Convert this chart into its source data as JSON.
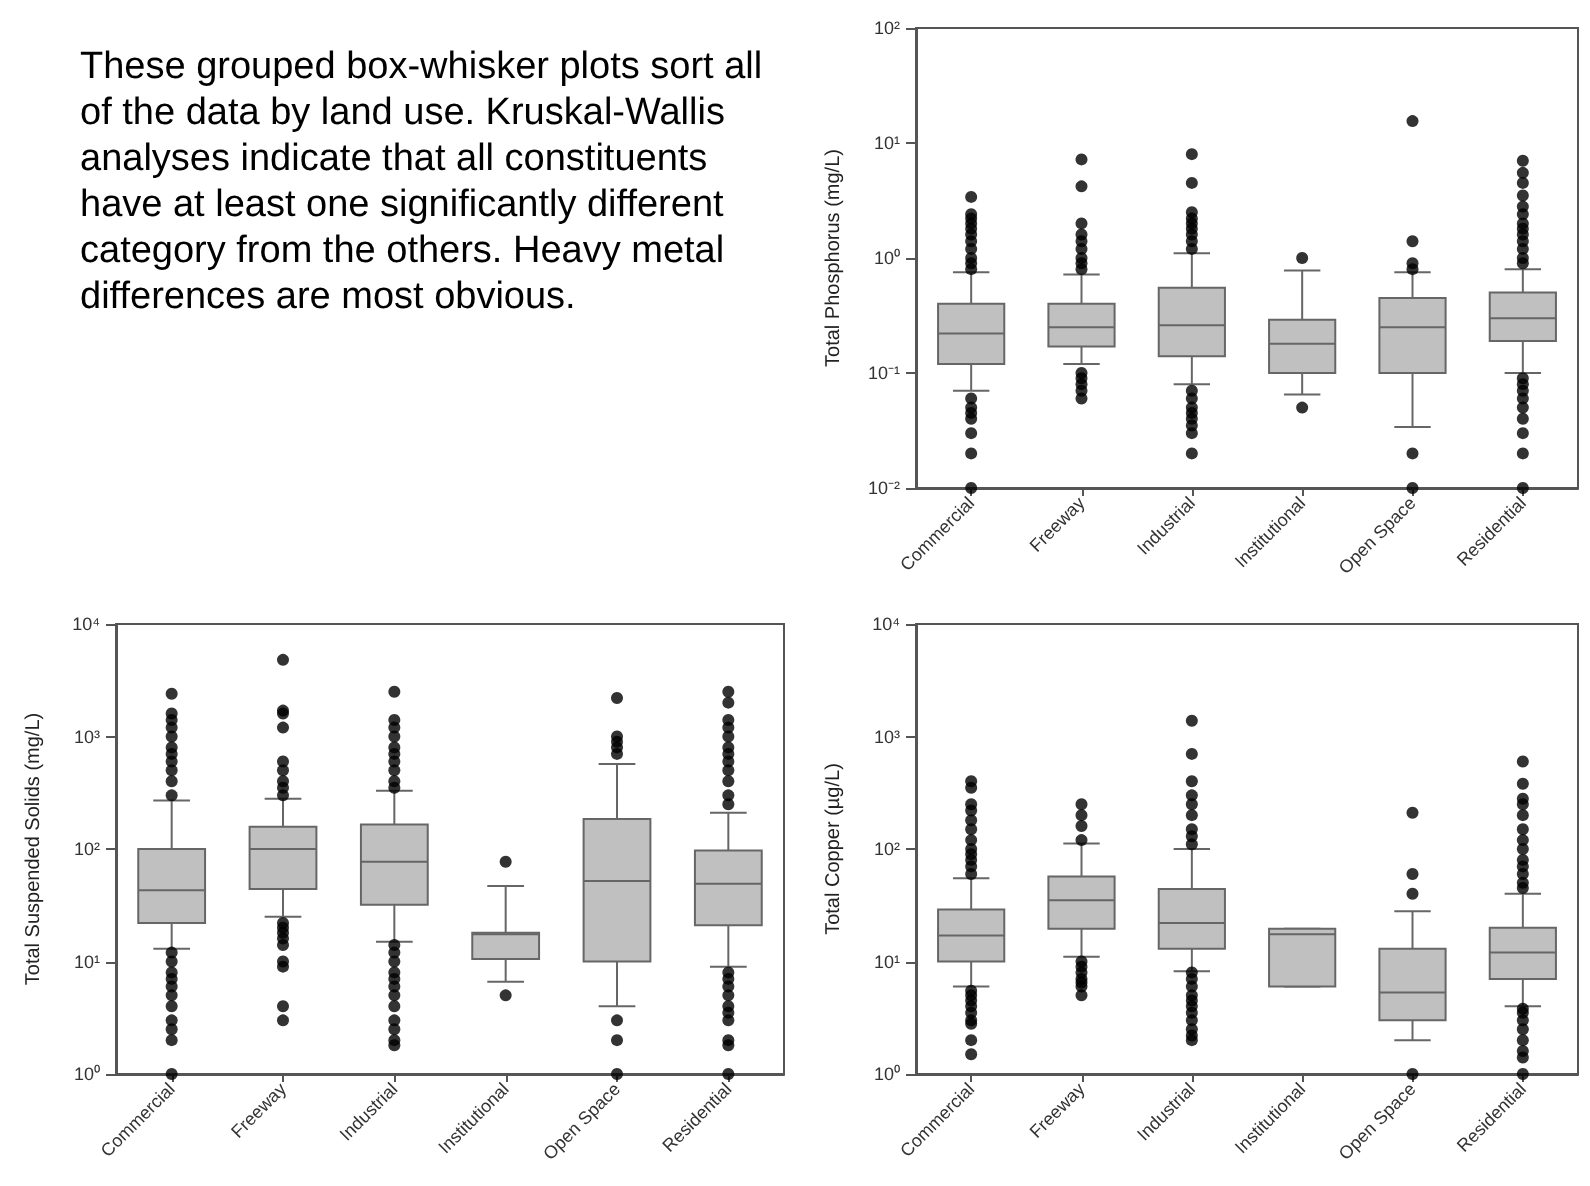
{
  "chart_data": [
    {
      "type": "other",
      "annotations": [
        "These grouped box-whisker plots sort all of the data by land use. Kruskal-Wallis analyses indicate that all constituents have at least one significantly different category from the others. Heavy metal differences are most obvious."
      ]
    },
    {
      "type": "box",
      "ylabel": "Total Phosphorus (mg/L)",
      "log": true,
      "categories": [
        "Commercial",
        "Freeway",
        "Industrial",
        "Institutional",
        "Open Space",
        "Residential"
      ],
      "ylim": [
        0.01,
        100
      ],
      "yticks": [
        {
          "value": 0.01,
          "label": "10⁻²"
        },
        {
          "value": 0.1,
          "label": "10⁻¹"
        },
        {
          "value": 1,
          "label": "10⁰"
        },
        {
          "value": 10,
          "label": "10¹"
        },
        {
          "value": 100,
          "label": "10²"
        }
      ],
      "series": [
        {
          "type": "box",
          "color": "#c0c0c0",
          "boxes": [
            {
              "low": 0.07,
              "q1": 0.12,
              "median": 0.22,
              "q3": 0.4,
              "high": 0.75
            },
            {
              "low": 0.12,
              "q1": 0.17,
              "median": 0.25,
              "q3": 0.4,
              "high": 0.72
            },
            {
              "low": 0.08,
              "q1": 0.14,
              "median": 0.26,
              "q3": 0.55,
              "high": 1.1
            },
            {
              "low": 0.065,
              "q1": 0.1,
              "median": 0.18,
              "q3": 0.29,
              "high": 0.78
            },
            {
              "low": 0.034,
              "q1": 0.1,
              "median": 0.25,
              "q3": 0.45,
              "high": 0.75
            },
            {
              "low": 0.1,
              "q1": 0.19,
              "median": 0.3,
              "q3": 0.5,
              "high": 0.8
            }
          ]
        },
        {
          "type": "scatter",
          "color": "#000000",
          "marker": "circle",
          "x": [
            "Commercial",
            "Commercial",
            "Commercial",
            "Commercial",
            "Commercial",
            "Commercial",
            "Commercial",
            "Commercial",
            "Commercial",
            "Commercial",
            "Commercial",
            "Commercial",
            "Commercial",
            "Commercial",
            "Commercial",
            "Commercial",
            "Commercial",
            "Commercial",
            "Freeway",
            "Freeway",
            "Freeway",
            "Freeway",
            "Freeway",
            "Freeway",
            "Freeway",
            "Freeway",
            "Freeway",
            "Freeway",
            "Freeway",
            "Freeway",
            "Freeway",
            "Freeway",
            "Industrial",
            "Industrial",
            "Industrial",
            "Industrial",
            "Industrial",
            "Industrial",
            "Industrial",
            "Industrial",
            "Industrial",
            "Industrial",
            "Industrial",
            "Industrial",
            "Industrial",
            "Industrial",
            "Industrial",
            "Industrial",
            "Industrial",
            "Institutional",
            "Institutional",
            "Open Space",
            "Open Space",
            "Open Space",
            "Open Space",
            "Open Space",
            "Open Space",
            "Residential",
            "Residential",
            "Residential",
            "Residential",
            "Residential",
            "Residential",
            "Residential",
            "Residential",
            "Residential",
            "Residential",
            "Residential",
            "Residential",
            "Residential",
            "Residential",
            "Residential",
            "Residential",
            "Residential",
            "Residential",
            "Residential",
            "Residential",
            "Residential",
            "Residential"
          ],
          "values": [
            0.8,
            0.9,
            1,
            1.2,
            1.4,
            1.6,
            1.8,
            2,
            2.2,
            2.4,
            3.4,
            0.06,
            0.05,
            0.045,
            0.04,
            0.03,
            0.02,
            0.01,
            0.8,
            0.9,
            1,
            1.2,
            1.4,
            1.6,
            2,
            4.2,
            7.2,
            0.1,
            0.09,
            0.08,
            0.07,
            0.06,
            1.2,
            1.4,
            1.6,
            1.8,
            2,
            2.2,
            2.5,
            4.5,
            8,
            0.07,
            0.06,
            0.05,
            0.045,
            0.04,
            0.035,
            0.03,
            0.02,
            1,
            0.05,
            0.8,
            0.9,
            1.4,
            15.5,
            0.02,
            0.01,
            0.9,
            1,
            1.2,
            1.4,
            1.6,
            1.8,
            2,
            2.4,
            2.8,
            3.5,
            4.5,
            5.5,
            7,
            0.09,
            0.08,
            0.07,
            0.06,
            0.05,
            0.04,
            0.03,
            0.02,
            0.01
          ]
        }
      ]
    },
    {
      "type": "box",
      "ylabel": "Total Suspended Solids (mg/L)",
      "log": true,
      "categories": [
        "Commercial",
        "Freeway",
        "Industrial",
        "Institutional",
        "Open Space",
        "Residential"
      ],
      "ylim": [
        1,
        10000
      ],
      "yticks": [
        {
          "value": 1,
          "label": "10⁰"
        },
        {
          "value": 10,
          "label": "10¹"
        },
        {
          "value": 100,
          "label": "10²"
        },
        {
          "value": 1000,
          "label": "10³"
        },
        {
          "value": 10000,
          "label": "10⁴"
        }
      ],
      "series": [
        {
          "type": "box",
          "color": "#c0c0c0",
          "boxes": [
            {
              "low": 13,
              "q1": 22,
              "median": 43,
              "q3": 100,
              "high": 270
            },
            {
              "low": 25,
              "q1": 44,
              "median": 100,
              "q3": 158,
              "high": 280
            },
            {
              "low": 15,
              "q1": 32,
              "median": 77,
              "q3": 165,
              "high": 330
            },
            {
              "low": 6.6,
              "q1": 10.5,
              "median": 17.5,
              "q3": 18,
              "high": 47
            },
            {
              "low": 4,
              "q1": 10,
              "median": 52,
              "q3": 185,
              "high": 570
            },
            {
              "low": 9,
              "q1": 21,
              "median": 49,
              "q3": 97,
              "high": 210
            }
          ]
        },
        {
          "type": "scatter",
          "color": "#000000",
          "marker": "circle",
          "x": [
            "Commercial",
            "Commercial",
            "Commercial",
            "Commercial",
            "Commercial",
            "Commercial",
            "Commercial",
            "Commercial",
            "Commercial",
            "Commercial",
            "Commercial",
            "Commercial",
            "Commercial",
            "Commercial",
            "Commercial",
            "Commercial",
            "Commercial",
            "Commercial",
            "Commercial",
            "Commercial",
            "Commercial",
            "Commercial",
            "Freeway",
            "Freeway",
            "Freeway",
            "Freeway",
            "Freeway",
            "Freeway",
            "Freeway",
            "Freeway",
            "Freeway",
            "Freeway",
            "Freeway",
            "Freeway",
            "Freeway",
            "Freeway",
            "Freeway",
            "Freeway",
            "Freeway",
            "Freeway",
            "Industrial",
            "Industrial",
            "Industrial",
            "Industrial",
            "Industrial",
            "Industrial",
            "Industrial",
            "Industrial",
            "Industrial",
            "Industrial",
            "Industrial",
            "Industrial",
            "Industrial",
            "Industrial",
            "Industrial",
            "Industrial",
            "Industrial",
            "Industrial",
            "Industrial",
            "Industrial",
            "Industrial",
            "Industrial",
            "Institutional",
            "Institutional",
            "Open Space",
            "Open Space",
            "Open Space",
            "Open Space",
            "Open Space",
            "Open Space",
            "Open Space",
            "Open Space",
            "Residential",
            "Residential",
            "Residential",
            "Residential",
            "Residential",
            "Residential",
            "Residential",
            "Residential",
            "Residential",
            "Residential",
            "Residential",
            "Residential",
            "Residential",
            "Residential",
            "Residential",
            "Residential",
            "Residential",
            "Residential",
            "Residential",
            "Residential",
            "Residential",
            "Residential"
          ],
          "values": [
            300,
            400,
            500,
            600,
            700,
            800,
            1000,
            1200,
            1400,
            1600,
            2400,
            12,
            10,
            8,
            7,
            6,
            5,
            4,
            3,
            2.5,
            2,
            1,
            300,
            350,
            400,
            500,
            600,
            1200,
            1600,
            1700,
            4800,
            22,
            20,
            18,
            16,
            14,
            10,
            9,
            4,
            3,
            350,
            400,
            500,
            600,
            700,
            800,
            1000,
            1200,
            1400,
            2500,
            14,
            12,
            10,
            8,
            7,
            6,
            5,
            4,
            3,
            2.5,
            2,
            1.8,
            77,
            5,
            700,
            800,
            900,
            1000,
            2200,
            3,
            2,
            1,
            250,
            300,
            400,
            500,
            600,
            700,
            800,
            1000,
            1200,
            1400,
            2000,
            2500,
            8,
            7,
            6,
            5,
            4,
            3.5,
            3,
            2,
            1.8,
            1
          ]
        }
      ]
    },
    {
      "type": "box",
      "ylabel": "Total Copper (µg/L)",
      "log": true,
      "categories": [
        "Commercial",
        "Freeway",
        "Industrial",
        "Institutional",
        "Open Space",
        "Residential"
      ],
      "ylim": [
        1,
        10000
      ],
      "yticks": [
        {
          "value": 1,
          "label": "10⁰"
        },
        {
          "value": 10,
          "label": "10¹"
        },
        {
          "value": 100,
          "label": "10²"
        },
        {
          "value": 1000,
          "label": "10³"
        },
        {
          "value": 10000,
          "label": "10⁴"
        }
      ],
      "series": [
        {
          "type": "box",
          "color": "#c0c0c0",
          "boxes": [
            {
              "low": 6,
              "q1": 10,
              "median": 17,
              "q3": 29,
              "high": 55
            },
            {
              "low": 11,
              "q1": 19.5,
              "median": 35,
              "q3": 57,
              "high": 112
            },
            {
              "low": 8.2,
              "q1": 13,
              "median": 22,
              "q3": 44,
              "high": 100
            },
            {
              "low": 6,
              "q1": 6,
              "median": 17.5,
              "q3": 19.5,
              "high": 19.5
            },
            {
              "low": 2,
              "q1": 3,
              "median": 5.3,
              "q3": 13,
              "high": 28
            },
            {
              "low": 4,
              "q1": 7,
              "median": 12,
              "q3": 20,
              "high": 40
            }
          ]
        },
        {
          "type": "scatter",
          "color": "#000000",
          "marker": "circle",
          "x": [
            "Commercial",
            "Commercial",
            "Commercial",
            "Commercial",
            "Commercial",
            "Commercial",
            "Commercial",
            "Commercial",
            "Commercial",
            "Commercial",
            "Commercial",
            "Commercial",
            "Commercial",
            "Commercial",
            "Commercial",
            "Commercial",
            "Commercial",
            "Commercial",
            "Commercial",
            "Commercial",
            "Commercial",
            "Freeway",
            "Freeway",
            "Freeway",
            "Freeway",
            "Freeway",
            "Freeway",
            "Freeway",
            "Freeway",
            "Freeway",
            "Freeway",
            "Freeway",
            "Industrial",
            "Industrial",
            "Industrial",
            "Industrial",
            "Industrial",
            "Industrial",
            "Industrial",
            "Industrial",
            "Industrial",
            "Industrial",
            "Industrial",
            "Industrial",
            "Industrial",
            "Industrial",
            "Industrial",
            "Industrial",
            "Industrial",
            "Industrial",
            "Industrial",
            "Industrial",
            "Open Space",
            "Open Space",
            "Open Space",
            "Open Space",
            "Residential",
            "Residential",
            "Residential",
            "Residential",
            "Residential",
            "Residential",
            "Residential",
            "Residential",
            "Residential",
            "Residential",
            "Residential",
            "Residential",
            "Residential",
            "Residential",
            "Residential",
            "Residential",
            "Residential",
            "Residential",
            "Residential",
            "Residential",
            "Residential"
          ],
          "values": [
            60,
            70,
            80,
            90,
            100,
            120,
            150,
            180,
            220,
            250,
            350,
            400,
            5.5,
            5,
            4.5,
            4,
            3.5,
            3,
            2.8,
            2,
            1.5,
            120,
            160,
            200,
            250,
            10,
            9,
            8,
            7,
            6.5,
            6,
            5,
            110,
            130,
            150,
            200,
            250,
            300,
            400,
            700,
            1380,
            8,
            7,
            6,
            5,
            4.5,
            4,
            3.5,
            3,
            2.5,
            2.2,
            2,
            40,
            60,
            210,
            1,
            45,
            50,
            60,
            70,
            80,
            100,
            120,
            150,
            200,
            250,
            280,
            380,
            600,
            3.8,
            3.5,
            3,
            2.5,
            2,
            1.6,
            1.4,
            1
          ]
        }
      ]
    }
  ]
}
